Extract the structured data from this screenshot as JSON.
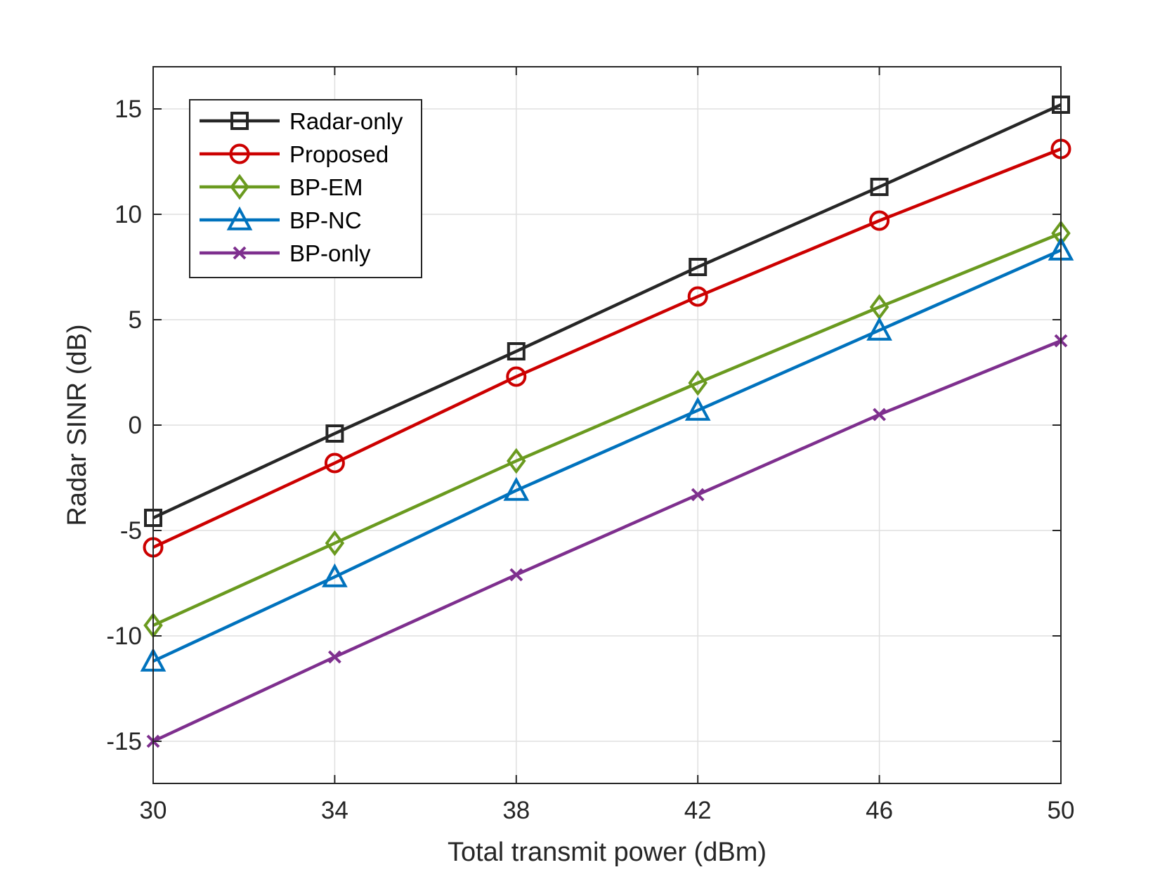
{
  "chart_data": {
    "type": "line",
    "title": "",
    "xlabel": "Total transmit power (dBm)",
    "ylabel": "Radar SINR (dB)",
    "xlim": [
      30,
      50
    ],
    "ylim": [
      -17,
      17
    ],
    "xticks": [
      30,
      34,
      38,
      42,
      46,
      50
    ],
    "yticks": [
      -15,
      -10,
      -5,
      0,
      5,
      10,
      15
    ],
    "xtick_labels": [
      "30",
      "34",
      "38",
      "42",
      "46",
      "50"
    ],
    "ytick_labels": [
      "-15",
      "-10",
      "-5",
      "0",
      "5",
      "10",
      "15"
    ],
    "grid": true,
    "legend_position": "top-left",
    "x": [
      30,
      34,
      38,
      42,
      46,
      50
    ],
    "series": [
      {
        "name": "Radar-only",
        "values": [
          -4.4,
          -0.4,
          3.5,
          7.5,
          11.3,
          15.2
        ],
        "color": "#262626",
        "marker": "square"
      },
      {
        "name": "Proposed",
        "values": [
          -5.8,
          -1.8,
          2.3,
          6.1,
          9.7,
          13.1
        ],
        "color": "#cc0000",
        "marker": "circle"
      },
      {
        "name": "BP-EM",
        "values": [
          -9.5,
          -5.6,
          -1.7,
          2.0,
          5.6,
          9.1
        ],
        "color": "#6a9a1f",
        "marker": "diamond"
      },
      {
        "name": "BP-NC",
        "values": [
          -11.2,
          -7.2,
          -3.1,
          0.7,
          4.5,
          8.3
        ],
        "color": "#0072bd",
        "marker": "triangle"
      },
      {
        "name": "BP-only",
        "values": [
          -15.0,
          -11.0,
          -7.1,
          -3.3,
          0.5,
          4.0
        ],
        "color": "#7e2f8e",
        "marker": "x"
      }
    ]
  }
}
